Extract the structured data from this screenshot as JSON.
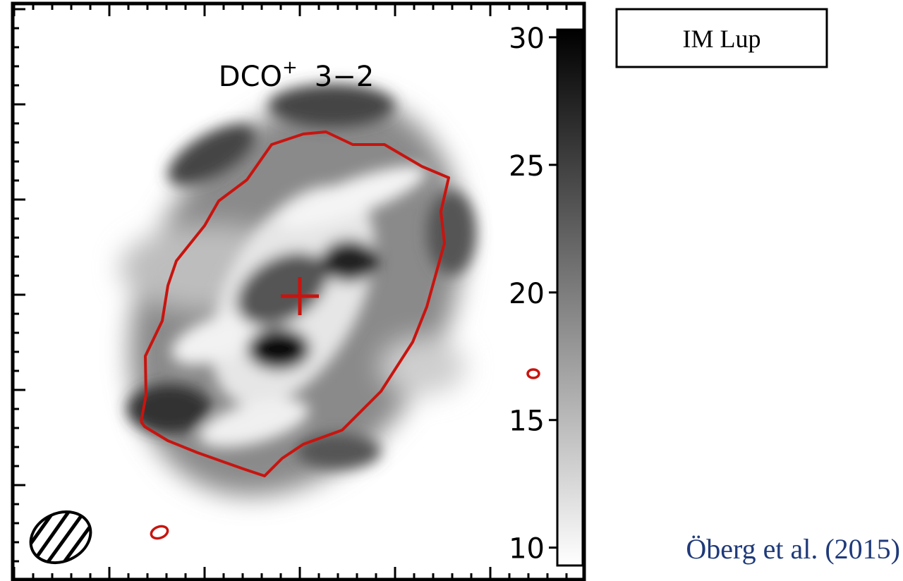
{
  "chart_data": {
    "type": "image",
    "title_parts": [
      "DCO",
      "+",
      "3−2"
    ],
    "label": "IM Lup",
    "citation": "Öberg et al. (2015)",
    "clim": [
      9.3,
      30.3
    ],
    "cticks": [
      10,
      15,
      20,
      25,
      30
    ],
    "colormap": [
      "#ffffff",
      "#000000"
    ],
    "contour_color": "#c8140f"
  }
}
